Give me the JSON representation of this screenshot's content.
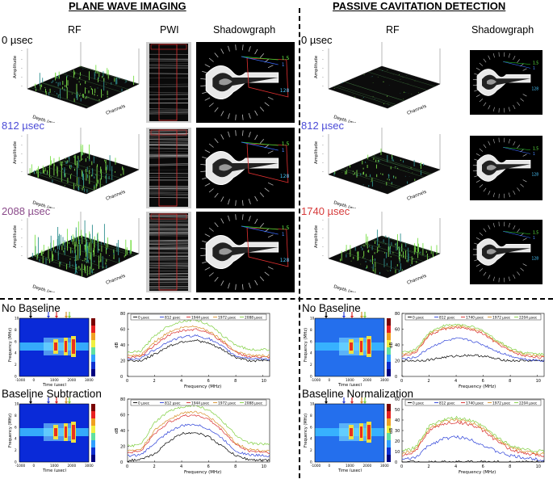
{
  "headers": {
    "left": "PLANE WAVE IMAGING",
    "right": "PASSIVE CAVITATION DETECTION"
  },
  "columns": {
    "rf_left": "RF",
    "pwi": "PWI",
    "shadow_left": "Shadowgraph",
    "rf_right": "RF",
    "shadow_right": "Shadowgraph"
  },
  "times_left": [
    {
      "label": "0 µsec",
      "color": "#000000"
    },
    {
      "label": "812 µsec",
      "color": "#4a4ad6"
    },
    {
      "label": "2088 µsec",
      "color": "#8a4a8a"
    }
  ],
  "times_right": [
    {
      "label": "0 µsec",
      "color": "#000000"
    },
    {
      "label": "812 µsec",
      "color": "#4a4ad6"
    },
    {
      "label": "1740 µsec",
      "color": "#d63a3a"
    }
  ],
  "axes3d": {
    "amplitude": "Amplitude",
    "depth": "Depth (mm)",
    "channels": "Channels"
  },
  "shadow_marks": {
    "a": "1.5",
    "b": "1",
    "c": "128"
  },
  "panels": {
    "nb_left": "No Baseline",
    "bs_left": "Baseline Subtraction",
    "nb_right": "No Baseline",
    "bn_right": "Baseline Normalization"
  },
  "spectrogram": {
    "ylabel": "Frequency (MHz)",
    "xlabel": "Time (µsec)",
    "xticks": [
      "-1000",
      "0",
      "1000",
      "2000",
      "3000"
    ],
    "yticks": [
      "0",
      "2",
      "4",
      "6",
      "8",
      "10"
    ]
  },
  "spectrum": {
    "ylabel": "dB",
    "xlabel": "Frequency (MHz)",
    "xticks": [
      "0",
      "2",
      "4",
      "6",
      "8",
      "10"
    ]
  },
  "legend_left": [
    "0 µsec",
    "812 µsec",
    "1944 µsec",
    "1972 µsec",
    "2088 µsec"
  ],
  "legend_right": [
    "0 µsec",
    "812 µsec",
    "1740 µsec",
    "1972 µsec",
    "2204 µsec"
  ],
  "colors": {
    "black": "#000000",
    "blue": "#2a3fd8",
    "red": "#d82a2a",
    "orange": "#d8902a",
    "green": "#7fcf3f"
  },
  "chart_data": [
    {
      "type": "line",
      "panel": "nb_left",
      "ylim": [
        0,
        80
      ],
      "xlim": [
        0,
        10.5
      ],
      "series": [
        {
          "name": "0 µsec",
          "color": "#000000",
          "x": [
            0,
            1,
            2,
            3,
            4,
            5,
            6,
            7,
            8,
            9,
            10.5
          ],
          "values": [
            20,
            20,
            28,
            38,
            44,
            46,
            42,
            34,
            24,
            20,
            20
          ]
        },
        {
          "name": "812 µsec",
          "color": "#2a3fd8",
          "x": [
            0,
            1,
            2,
            3,
            4,
            5,
            6,
            7,
            8,
            9,
            10.5
          ],
          "values": [
            22,
            23,
            34,
            44,
            50,
            52,
            48,
            38,
            26,
            23,
            22
          ]
        },
        {
          "name": "1944 µsec",
          "color": "#d82a2a",
          "x": [
            0,
            1,
            2,
            3,
            4,
            5,
            6,
            7,
            8,
            9,
            10.5
          ],
          "values": [
            24,
            25,
            40,
            52,
            58,
            60,
            56,
            44,
            30,
            25,
            24
          ]
        },
        {
          "name": "1972 µsec",
          "color": "#d8902a",
          "x": [
            0,
            1,
            2,
            3,
            4,
            5,
            6,
            7,
            8,
            9,
            10.5
          ],
          "values": [
            26,
            27,
            44,
            56,
            62,
            64,
            58,
            46,
            32,
            27,
            26
          ]
        },
        {
          "name": "2088 µsec",
          "color": "#7fcf3f",
          "x": [
            0,
            1,
            2,
            3,
            4,
            5,
            6,
            7,
            8,
            9,
            10.5
          ],
          "values": [
            30,
            32,
            52,
            64,
            70,
            72,
            66,
            52,
            40,
            34,
            34
          ]
        }
      ]
    },
    {
      "type": "line",
      "panel": "bs_left",
      "ylim": [
        0,
        80
      ],
      "xlim": [
        0,
        10.5
      ],
      "series": [
        {
          "name": "0 µsec",
          "color": "#000000",
          "x": [
            0,
            1,
            2,
            3,
            4,
            5,
            6,
            7,
            8,
            9,
            10.5
          ],
          "values": [
            2,
            3,
            10,
            26,
            36,
            38,
            32,
            20,
            8,
            3,
            2
          ]
        },
        {
          "name": "812 µsec",
          "color": "#2a3fd8",
          "x": [
            0,
            1,
            2,
            3,
            4,
            5,
            6,
            7,
            8,
            9,
            10.5
          ],
          "values": [
            8,
            9,
            24,
            38,
            46,
            48,
            42,
            30,
            14,
            9,
            8
          ]
        },
        {
          "name": "1944 µsec",
          "color": "#d82a2a",
          "x": [
            0,
            1,
            2,
            3,
            4,
            5,
            6,
            7,
            8,
            9,
            10.5
          ],
          "values": [
            12,
            14,
            36,
            50,
            58,
            60,
            54,
            40,
            22,
            14,
            12
          ]
        },
        {
          "name": "1972 µsec",
          "color": "#d8902a",
          "x": [
            0,
            1,
            2,
            3,
            4,
            5,
            6,
            7,
            8,
            9,
            10.5
          ],
          "values": [
            14,
            16,
            40,
            54,
            62,
            64,
            58,
            44,
            24,
            16,
            14
          ]
        },
        {
          "name": "2088 µsec",
          "color": "#7fcf3f",
          "x": [
            0,
            1,
            2,
            3,
            4,
            5,
            6,
            7,
            8,
            9,
            10.5
          ],
          "values": [
            20,
            22,
            50,
            64,
            70,
            72,
            66,
            52,
            34,
            24,
            22
          ]
        }
      ]
    },
    {
      "type": "line",
      "panel": "nb_right",
      "ylim": [
        0,
        80
      ],
      "xlim": [
        0,
        10.5
      ],
      "series": [
        {
          "name": "0 µsec",
          "color": "#000000",
          "x": [
            0,
            1,
            2,
            3,
            4,
            5,
            6,
            7,
            8,
            9,
            10.5
          ],
          "values": [
            20,
            20,
            21,
            24,
            26,
            27,
            26,
            22,
            20,
            20,
            20
          ]
        },
        {
          "name": "812 µsec",
          "color": "#2a3fd8",
          "x": [
            0,
            1,
            2,
            3,
            4,
            5,
            6,
            7,
            8,
            9,
            10.5
          ],
          "values": [
            22,
            24,
            36,
            44,
            48,
            46,
            40,
            32,
            26,
            22,
            20
          ]
        },
        {
          "name": "1740 µsec",
          "color": "#d82a2a",
          "x": [
            0,
            1,
            2,
            3,
            4,
            5,
            6,
            7,
            8,
            9,
            10.5
          ],
          "values": [
            26,
            30,
            52,
            60,
            62,
            60,
            54,
            42,
            32,
            26,
            24
          ]
        },
        {
          "name": "1972 µsec",
          "color": "#d8902a",
          "x": [
            0,
            1,
            2,
            3,
            4,
            5,
            6,
            7,
            8,
            9,
            10.5
          ],
          "values": [
            28,
            32,
            54,
            62,
            64,
            62,
            56,
            44,
            34,
            28,
            26
          ]
        },
        {
          "name": "2204 µsec",
          "color": "#7fcf3f",
          "x": [
            0,
            1,
            2,
            3,
            4,
            5,
            6,
            7,
            8,
            9,
            10.5
          ],
          "values": [
            30,
            34,
            56,
            64,
            66,
            64,
            58,
            46,
            36,
            30,
            28
          ]
        }
      ]
    },
    {
      "type": "line",
      "panel": "bn_right",
      "ylim": [
        0,
        60
      ],
      "xlim": [
        0,
        10.5
      ],
      "series": [
        {
          "name": "0 µsec",
          "color": "#000000",
          "x": [
            0,
            1,
            2,
            3,
            4,
            5,
            6,
            7,
            8,
            9,
            10.5
          ],
          "values": [
            0,
            0,
            0,
            0,
            0,
            0,
            0,
            0,
            0,
            0,
            0
          ]
        },
        {
          "name": "812 µsec",
          "color": "#2a3fd8",
          "x": [
            0,
            1,
            2,
            3,
            4,
            5,
            6,
            7,
            8,
            9,
            10.5
          ],
          "values": [
            2,
            4,
            16,
            22,
            24,
            22,
            16,
            10,
            6,
            4,
            2
          ]
        },
        {
          "name": "1740 µsec",
          "color": "#d82a2a",
          "x": [
            0,
            1,
            2,
            3,
            4,
            5,
            6,
            7,
            8,
            9,
            10.5
          ],
          "values": [
            6,
            10,
            30,
            36,
            38,
            36,
            30,
            20,
            12,
            8,
            6
          ]
        },
        {
          "name": "1972 µsec",
          "color": "#d8902a",
          "x": [
            0,
            1,
            2,
            3,
            4,
            5,
            6,
            7,
            8,
            9,
            10.5
          ],
          "values": [
            8,
            12,
            32,
            38,
            40,
            38,
            32,
            22,
            14,
            10,
            8
          ]
        },
        {
          "name": "2204 µsec",
          "color": "#7fcf3f",
          "x": [
            0,
            1,
            2,
            3,
            4,
            5,
            6,
            7,
            8,
            9,
            10.5
          ],
          "values": [
            10,
            14,
            34,
            40,
            42,
            40,
            34,
            24,
            16,
            12,
            10
          ]
        }
      ]
    }
  ]
}
